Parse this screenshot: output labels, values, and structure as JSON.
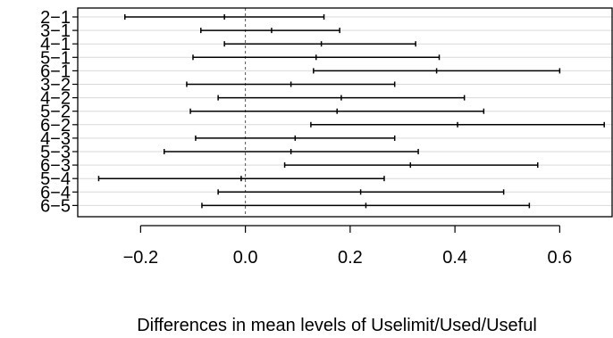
{
  "chart_data": {
    "type": "interval",
    "title": "",
    "xlabel": "Differences in mean levels of Uselimit/Used/Useful",
    "ylabel": "",
    "xlim": [
      -0.32,
      0.7
    ],
    "xticks": [
      -0.2,
      0.0,
      0.2,
      0.4,
      0.6
    ],
    "xtick_labels": [
      "−0.2",
      "0.0",
      "0.2",
      "0.4",
      "0.6"
    ],
    "reference_line": 0.0,
    "grid": "horizontal",
    "comparisons": [
      {
        "label": "2−1",
        "estimate": -0.04,
        "lower": -0.23,
        "upper": 0.15
      },
      {
        "label": "3−1",
        "estimate": 0.05,
        "lower": -0.085,
        "upper": 0.18
      },
      {
        "label": "4−1",
        "estimate": 0.145,
        "lower": -0.04,
        "upper": 0.325
      },
      {
        "label": "5−1",
        "estimate": 0.135,
        "lower": -0.1,
        "upper": 0.37
      },
      {
        "label": "6−1",
        "estimate": 0.365,
        "lower": 0.13,
        "upper": 0.6
      },
      {
        "label": "3−2",
        "estimate": 0.087,
        "lower": -0.112,
        "upper": 0.285
      },
      {
        "label": "4−2",
        "estimate": 0.183,
        "lower": -0.052,
        "upper": 0.418
      },
      {
        "label": "5−2",
        "estimate": 0.175,
        "lower": -0.105,
        "upper": 0.455
      },
      {
        "label": "6−2",
        "estimate": 0.405,
        "lower": 0.125,
        "upper": 0.685
      },
      {
        "label": "4−3",
        "estimate": 0.095,
        "lower": -0.095,
        "upper": 0.285
      },
      {
        "label": "5−3",
        "estimate": 0.087,
        "lower": -0.155,
        "upper": 0.33
      },
      {
        "label": "6−3",
        "estimate": 0.315,
        "lower": 0.075,
        "upper": 0.558
      },
      {
        "label": "5−4",
        "estimate": -0.008,
        "lower": -0.28,
        "upper": 0.265
      },
      {
        "label": "6−4",
        "estimate": 0.22,
        "lower": -0.052,
        "upper": 0.493
      },
      {
        "label": "6−5",
        "estimate": 0.23,
        "lower": -0.083,
        "upper": 0.542
      }
    ]
  }
}
